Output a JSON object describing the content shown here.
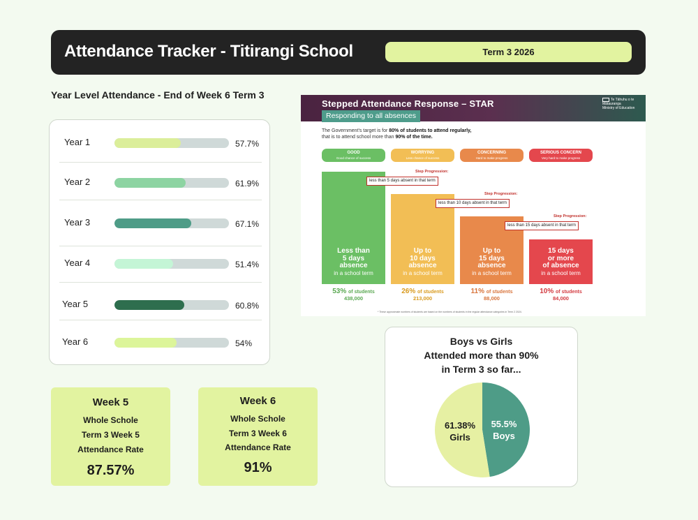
{
  "header": {
    "title": "Attendance Tracker - Titirangi School",
    "term": "Term 3 2026"
  },
  "year_section": {
    "title": "Year Level Attendance - End of Week 6 Term 3",
    "years": [
      {
        "label": "Year 1",
        "value": 57.7,
        "pct": "57.7%",
        "color": "#dbee9a"
      },
      {
        "label": "Year 2",
        "value": 61.9,
        "pct": "61.9%",
        "color": "#8dd4a2"
      },
      {
        "label": "Year 3",
        "value": 67.1,
        "pct": "67.1%",
        "color": "#4e9c87"
      },
      {
        "label": "Year 4",
        "value": 51.4,
        "pct": "51.4%",
        "color": "#c4f5d6"
      },
      {
        "label": "Year 5",
        "value": 60.8,
        "pct": "60.8%",
        "color": "#2e6e4e"
      },
      {
        "label": "Year 6",
        "value": 54,
        "pct": "54%",
        "color": "#dcf59a"
      }
    ]
  },
  "weeks": [
    {
      "title": "Week 5",
      "line1": "Whole Schole",
      "line2": "Term 3 Week 5",
      "line3": "Attendance Rate",
      "value": "87.57%"
    },
    {
      "title": "Week 6",
      "line1": "Whole Schole",
      "line2": "Term 3 Week 6",
      "line3": "Attendance Rate",
      "value": "91%"
    }
  ],
  "star": {
    "title_prefix": "Stepped Attendance Response – ",
    "title_bold": "STAR",
    "subtitle": "Responding to all absences",
    "logo_line1": "Te Tāhuhu o te Mātauranga",
    "logo_line2": "Ministry of Education",
    "target_a": "The Government's target is for ",
    "target_b": "80% of students to attend regularly,",
    "target_c": "that is to attend school more than ",
    "target_d": "90% of the time.",
    "step_label": "Step Progression:",
    "footnote": "* These approximate numbers of students are based on the numbers of students in the regular attendance categories in Term 2 2024.",
    "categories": [
      {
        "name": "GOOD",
        "desc": "Good chance of success",
        "color": "#6bbf64",
        "head": [
          "Less than",
          "5 days",
          "absence"
        ],
        "note": "in a school term",
        "pct": "53%",
        "num": "438,000",
        "step": "less than 5 days absent in that term",
        "stat_color": "#5aa852"
      },
      {
        "name": "WORRYING",
        "desc": "Less chance of success",
        "color": "#f2be55",
        "head": [
          "Up to",
          "10 days",
          "absence"
        ],
        "note": "in a school term",
        "pct": "26%",
        "num": "213,000",
        "step": "less than 10 days absent in that term",
        "stat_color": "#d99a1e"
      },
      {
        "name": "CONCERNING",
        "desc": "Hard to make progress",
        "color": "#e8894b",
        "head": [
          "Up to",
          "15 days",
          "absence"
        ],
        "note": "in a school term",
        "pct": "11%",
        "num": "88,000",
        "step": "less than 15 days absent in that term",
        "stat_color": "#d8733a"
      },
      {
        "name": "SERIOUS CONCERN",
        "desc": "Very hard to make progress",
        "color": "#e4474d",
        "head": [
          "15 days",
          "or more",
          "of absence"
        ],
        "note": "in a school term",
        "pct": "10%",
        "num": "84,000",
        "step": "",
        "stat_color": "#d33a40"
      }
    ],
    "of_students": "of students"
  },
  "pie": {
    "title_lines": [
      "Boys vs Girls",
      "Attended more than 90%",
      "in Term 3 so far..."
    ],
    "chart_data": {
      "type": "pie",
      "title": "Boys vs Girls Attended more than 90% in Term 3 so far...",
      "slices": [
        {
          "label": "Boys",
          "value": 55.5,
          "display": "55.5%",
          "color": "#4e9c87",
          "text_color": "#ffffff"
        },
        {
          "label": "Girls",
          "value": 61.38,
          "display": "61.38%",
          "color": "#e6f0a3",
          "text_color": "#1d1d1d"
        }
      ]
    }
  }
}
